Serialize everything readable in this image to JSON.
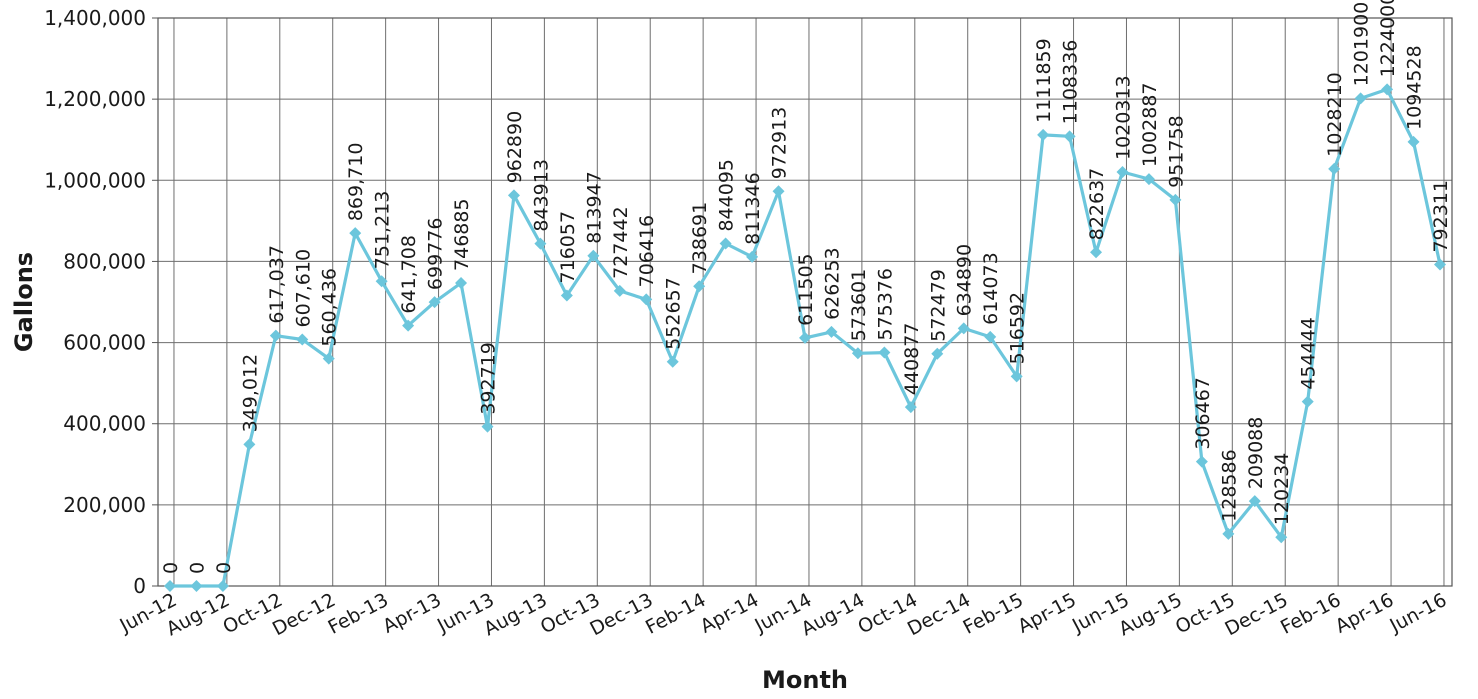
{
  "chart_data": {
    "type": "line",
    "xlabel": "Month",
    "ylabel": "Gallons",
    "ylim": [
      0,
      1400000
    ],
    "yticks": [
      0,
      200000,
      400000,
      600000,
      800000,
      1000000,
      1200000,
      1400000
    ],
    "ytick_labels": [
      "0",
      "200,000",
      "400,000",
      "600,000",
      "800,000",
      "1,000,000",
      "1,200,000",
      "1,400,000"
    ],
    "grid": "vertical and horizontal",
    "legend": "none",
    "line_color": "#6cc6dc",
    "categories": [
      "Jun-12",
      "Jul-12",
      "Aug-12",
      "Sep-12",
      "Oct-12",
      "Nov-12",
      "Dec-12",
      "Jan-13",
      "Feb-13",
      "Mar-13",
      "Apr-13",
      "May-13",
      "Jun-13",
      "Jul-13",
      "Aug-13",
      "Sep-13",
      "Oct-13",
      "Nov-13",
      "Dec-13",
      "Jan-14",
      "Feb-14",
      "Mar-14",
      "Apr-14",
      "May-14",
      "Jun-14",
      "Jul-14",
      "Aug-14",
      "Sep-14",
      "Oct-14",
      "Nov-14",
      "Dec-14",
      "Jan-15",
      "Feb-15",
      "Mar-15",
      "Apr-15",
      "May-15",
      "Jun-15",
      "Jul-15",
      "Aug-15",
      "Sep-15",
      "Oct-15",
      "Nov-15",
      "Dec-15",
      "Jan-16",
      "Feb-16",
      "Mar-16",
      "Apr-16",
      "May-16",
      "Jun-16"
    ],
    "xtick_labels": [
      "Jun-12",
      "Aug-12",
      "Oct-12",
      "Dec-12",
      "Feb-13",
      "Apr-13",
      "Jun-13",
      "Aug-13",
      "Oct-13",
      "Dec-13",
      "Feb-14",
      "Apr-14",
      "Jun-14",
      "Aug-14",
      "Oct-14",
      "Dec-14",
      "Feb-15",
      "Apr-15",
      "Jun-15",
      "Aug-15",
      "Oct-15",
      "Dec-15",
      "Feb-16",
      "Apr-16",
      "Jun-16"
    ],
    "values": [
      0,
      0,
      0,
      349012,
      617037,
      607610,
      560436,
      869710,
      751213,
      641708,
      699776,
      746885,
      392719,
      962890,
      843913,
      716057,
      813947,
      727442,
      706416,
      552657,
      738691,
      844095,
      811346,
      972913,
      611505,
      626253,
      573601,
      575376,
      440877,
      572479,
      634890,
      614073,
      516592,
      1111859,
      1108336,
      822637,
      1020313,
      1002887,
      951758,
      306467,
      128586,
      209088,
      120234,
      454444,
      1028210,
      1201900,
      1224000,
      1094528,
      792311
    ],
    "data_labels": [
      "0",
      "0",
      "0",
      "349,012",
      "617,037",
      "607,610",
      "560,436",
      "869,710",
      "751,213",
      "641,708",
      "699776",
      "746885",
      "392719",
      "962890",
      "843913",
      "716057",
      "813947",
      "727442",
      "706416",
      "552657",
      "738691",
      "844095",
      "811346",
      "972913",
      "611505",
      "626253",
      "573601",
      "575376",
      "440877",
      "572479",
      "634890",
      "614073",
      "516592",
      "1111859",
      "1108336",
      "822637",
      "1020313",
      "1002887",
      "951758",
      "306467",
      "128586",
      "209088",
      "120234",
      "454444",
      "1028210",
      "1201900",
      "1224000",
      "1094528",
      "792311"
    ]
  }
}
